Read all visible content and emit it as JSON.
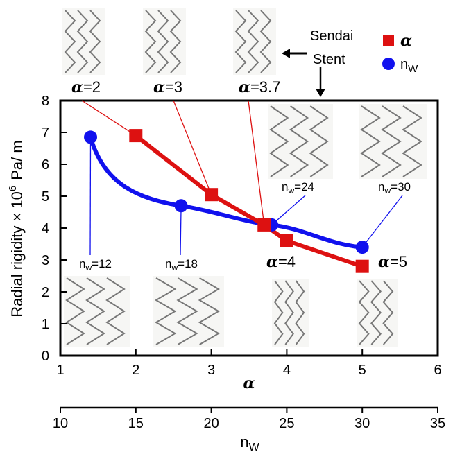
{
  "chart_data": {
    "type": "line",
    "ylabel_main": "Radial rigidity × 10",
    "ylabel_exp": "6",
    "ylabel_unit": "Pa/ m",
    "xlabel": "α",
    "xlabel2_base": "n",
    "xlabel2_sub": "W",
    "ylim": [
      0,
      8
    ],
    "xlim": [
      1,
      6
    ],
    "x2lim": [
      10,
      35
    ],
    "yticks": [
      "0",
      "1",
      "2",
      "3",
      "4",
      "5",
      "6",
      "7",
      "8"
    ],
    "xticks": [
      "1",
      "2",
      "3",
      "4",
      "5",
      "6"
    ],
    "x2ticks": [
      "10",
      "15",
      "20",
      "25",
      "30",
      "35"
    ],
    "legend": {
      "alpha_label": "α",
      "nw_base": "n",
      "nw_sub": "W",
      "alpha_color": "#dd1111",
      "nw_color": "#1111ee"
    },
    "series": [
      {
        "key": "alpha",
        "color": "#dd1111",
        "x": [
          2,
          3,
          3.7,
          4,
          5
        ],
        "y": [
          6.9,
          5.05,
          4.1,
          3.6,
          2.8
        ]
      },
      {
        "key": "nw",
        "color": "#1111ee",
        "x": [
          12,
          18,
          24,
          30
        ],
        "y": [
          6.85,
          4.7,
          4.1,
          3.4
        ]
      }
    ],
    "top_labels": [
      {
        "prefix": "α",
        "value": "=2"
      },
      {
        "prefix": "α",
        "value": "=3"
      },
      {
        "prefix": "α",
        "value": "=3.7"
      }
    ],
    "sendai_label": [
      "Sendai",
      "Stent"
    ],
    "inner_alpha_labels": [
      {
        "prefix": "α",
        "value": "=4"
      },
      {
        "prefix": "α",
        "value": "=5"
      }
    ],
    "nw_labels": [
      {
        "base": "n",
        "sub": "w",
        "value": "=12"
      },
      {
        "base": "n",
        "sub": "w",
        "value": "=18"
      },
      {
        "base": "n",
        "sub": "w",
        "value": "=24"
      },
      {
        "base": "n",
        "sub": "w",
        "value": "=30"
      }
    ]
  }
}
